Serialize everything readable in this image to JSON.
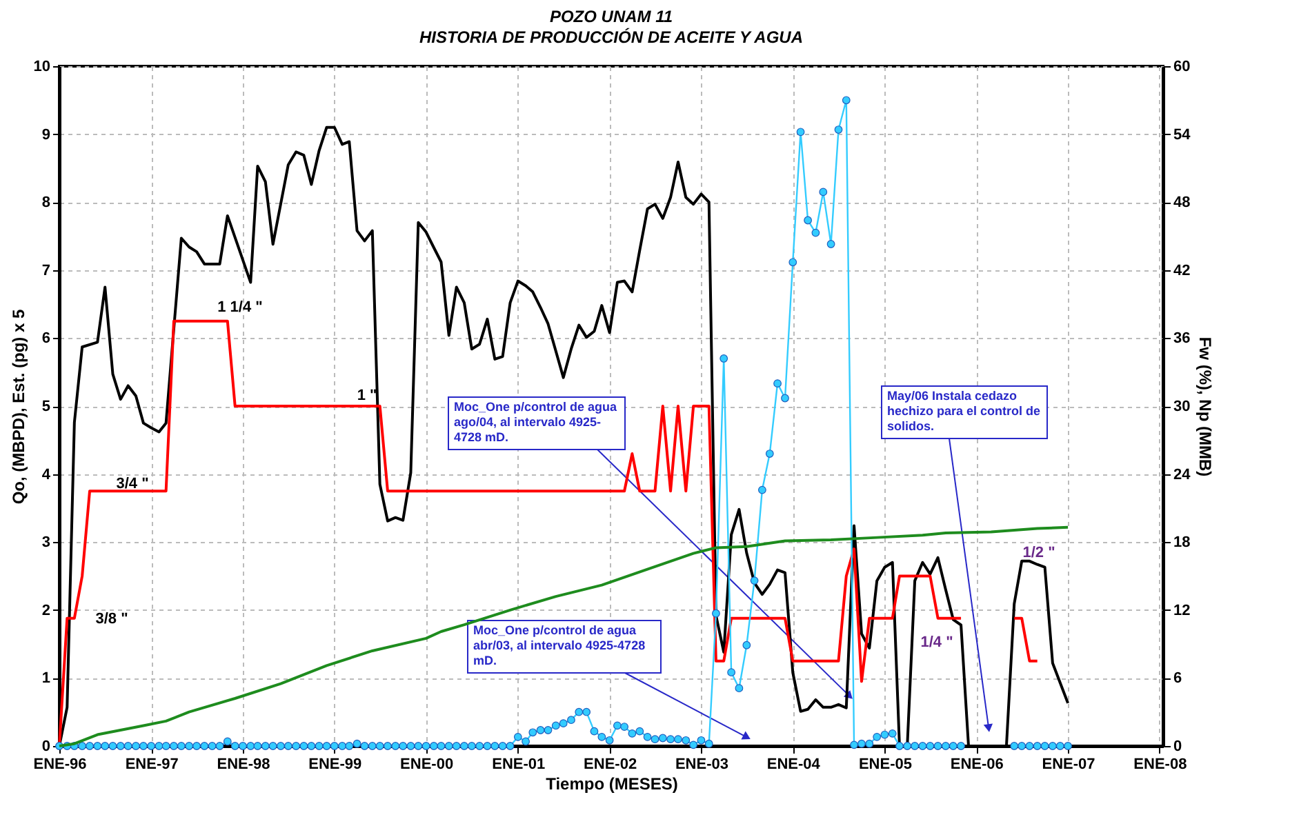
{
  "chart_data": {
    "type": "line",
    "title": "POZO UNAM 11",
    "subtitle": "HISTORIA DE PRODUCCIÓN DE ACEITE Y AGUA",
    "xlabel": "Tiempo (MESES)",
    "ylabel": "Qo, (MBPD), Est. (pg) x 5",
    "y2label": "Fw (%), Np (MMB)",
    "xlim": [
      "1996-01",
      "2008-01-15"
    ],
    "xticks": [
      {
        "value": "1996-01",
        "label": "ENE-96"
      },
      {
        "value": "1997-01",
        "label": "ENE-97"
      },
      {
        "value": "1998-01",
        "label": "ENE-98"
      },
      {
        "value": "1999-01",
        "label": "ENE-99"
      },
      {
        "value": "2000-01",
        "label": "ENE-00"
      },
      {
        "value": "2001-01",
        "label": "ENE-01"
      },
      {
        "value": "2002-01",
        "label": "ENE-02"
      },
      {
        "value": "2003-01",
        "label": "ENE-03"
      },
      {
        "value": "2004-01",
        "label": "ENE-04"
      },
      {
        "value": "2005-01",
        "label": "ENE-05"
      },
      {
        "value": "2006-01",
        "label": "ENE-06"
      },
      {
        "value": "2007-01",
        "label": "ENE-07"
      },
      {
        "value": "2008-01",
        "label": "ENE-08"
      }
    ],
    "ylim": [
      0,
      10
    ],
    "yticks": [
      0,
      1,
      2,
      3,
      4,
      5,
      6,
      7,
      8,
      9,
      10
    ],
    "y2lim": [
      0,
      60
    ],
    "y2ticks": [
      0,
      6,
      12,
      18,
      24,
      30,
      36,
      42,
      48,
      54,
      60
    ],
    "grid": true,
    "x": [
      "1996-01",
      "1996-02",
      "1996-03",
      "1996-04",
      "1996-05",
      "1996-06",
      "1996-07",
      "1996-08",
      "1996-09",
      "1996-10",
      "1996-11",
      "1996-12",
      "1997-01",
      "1997-02",
      "1997-03",
      "1997-04",
      "1997-05",
      "1997-06",
      "1997-07",
      "1997-08",
      "1997-09",
      "1997-10",
      "1997-11",
      "1997-12",
      "1998-01",
      "1998-02",
      "1998-03",
      "1998-04",
      "1998-05",
      "1998-06",
      "1998-07",
      "1998-08",
      "1998-09",
      "1998-10",
      "1998-11",
      "1998-12",
      "1999-01",
      "1999-02",
      "1999-03",
      "1999-04",
      "1999-05",
      "1999-06",
      "1999-07",
      "1999-08",
      "1999-09",
      "1999-10",
      "1999-11",
      "1999-12",
      "2000-01",
      "2000-02",
      "2000-03",
      "2000-04",
      "2000-05",
      "2000-06",
      "2000-07",
      "2000-08",
      "2000-09",
      "2000-10",
      "2000-11",
      "2000-12",
      "2001-01",
      "2001-02",
      "2001-03",
      "2001-04",
      "2001-05",
      "2001-06",
      "2001-07",
      "2001-08",
      "2001-09",
      "2001-10",
      "2001-11",
      "2001-12",
      "2002-01",
      "2002-02",
      "2002-03",
      "2002-04",
      "2002-05",
      "2002-06",
      "2002-07",
      "2002-08",
      "2002-09",
      "2002-10",
      "2002-11",
      "2002-12",
      "2003-01",
      "2003-02",
      "2003-03",
      "2003-04",
      "2003-05",
      "2003-06",
      "2003-07",
      "2003-08",
      "2003-09",
      "2003-10",
      "2003-11",
      "2003-12",
      "2004-01",
      "2004-02",
      "2004-03",
      "2004-04",
      "2004-05",
      "2004-06",
      "2004-07",
      "2004-08",
      "2004-09",
      "2004-10",
      "2004-11",
      "2004-12",
      "2005-01",
      "2005-02",
      "2005-03",
      "2005-04",
      "2005-05",
      "2005-06",
      "2005-07",
      "2005-08",
      "2005-09",
      "2005-10",
      "2005-11",
      "2005-12",
      "2006-01",
      "2006-02",
      "2006-03",
      "2006-04",
      "2006-05",
      "2006-06",
      "2006-07",
      "2006-08",
      "2006-09",
      "2006-10",
      "2006-11",
      "2006-12",
      "2007-01"
    ],
    "series": [
      {
        "color": "#000000",
        "x": [
          "1996-01",
          "1996-02",
          "1996-03",
          "1996-04",
          "1996-06",
          "1996-07",
          "1996-08",
          "1996-09",
          "1996-10",
          "1996-11",
          "1996-12",
          "1997-01",
          "1997-02",
          "1997-03",
          "1997-05",
          "1997-06",
          "1997-07",
          "1997-08",
          "1997-10",
          "1997-11",
          "1998-02",
          "1998-03",
          "1998-04",
          "1998-05",
          "1998-07",
          "1998-08",
          "1998-09",
          "1998-10",
          "1998-11",
          "1998-12",
          "1999-01",
          "1999-02",
          "1999-03",
          "1999-04",
          "1999-05",
          "1999-06",
          "1999-07",
          "1999-08",
          "1999-09",
          "1999-10",
          "1999-11",
          "1999-12",
          "2000-01",
          "2000-02",
          "2000-03",
          "2000-04",
          "2000-05",
          "2000-06",
          "2000-07",
          "2000-08",
          "2000-09",
          "2000-10",
          "2000-11",
          "2000-12",
          "2001-01",
          "2001-02",
          "2001-03",
          "2001-04",
          "2001-05",
          "2001-07",
          "2001-08",
          "2001-09",
          "2001-10",
          "2001-11",
          "2001-12",
          "2002-01",
          "2002-02",
          "2002-03",
          "2002-04",
          "2002-05",
          "2002-06",
          "2002-07",
          "2002-08",
          "2002-09",
          "2002-10",
          "2002-11",
          "2002-12",
          "2003-01",
          "2003-02",
          "2003-03",
          "2003-04",
          "2003-05",
          "2003-06",
          "2003-07",
          "2003-08",
          "2003-09",
          "2003-10",
          "2003-11",
          "2003-12",
          "2004-01",
          "2004-02",
          "2004-03",
          "2004-04",
          "2004-05",
          "2004-06",
          "2004-07",
          "2004-08",
          "2004-09",
          "2004-10",
          "2004-11",
          "2004-12",
          "2005-01",
          "2005-02",
          "2005-03",
          "2005-04",
          "2005-05",
          "2005-06",
          "2005-07",
          "2005-08",
          "2005-09",
          "2005-10",
          "2005-11",
          "2005-12",
          "2006-05",
          "2006-06",
          "2006-07",
          "2006-08",
          "2006-09",
          "2006-10",
          "2006-11",
          "2007-01"
        ],
        "values": [
          0,
          0.57,
          4.76,
          5.87,
          5.94,
          6.75,
          5.47,
          5.1,
          5.3,
          5.15,
          4.75,
          4.68,
          4.62,
          4.75,
          7.47,
          7.34,
          7.27,
          7.09,
          7.09,
          7.8,
          6.82,
          8.53,
          8.3,
          7.38,
          8.55,
          8.74,
          8.69,
          8.26,
          8.76,
          9.1,
          9.1,
          8.85,
          8.89,
          7.58,
          7.43,
          7.58,
          3.85,
          3.31,
          3.36,
          3.32,
          4.02,
          7.7,
          7.56,
          7.33,
          7.12,
          6.04,
          6.75,
          6.52,
          5.84,
          5.91,
          6.28,
          5.69,
          5.73,
          6.52,
          6.84,
          6.77,
          6.68,
          6.45,
          6.21,
          5.42,
          5.84,
          6.19,
          6.01,
          6.1,
          6.48,
          6.08,
          6.82,
          6.84,
          6.68,
          7.29,
          7.9,
          7.97,
          7.76,
          8.07,
          8.59,
          8.07,
          7.97,
          8.12,
          8.0,
          1.92,
          1.38,
          3.11,
          3.48,
          2.84,
          2.4,
          2.23,
          2.38,
          2.59,
          2.55,
          1.08,
          0.51,
          0.54,
          0.68,
          0.57,
          0.57,
          0.61,
          0.56,
          3.24,
          1.65,
          1.44,
          2.43,
          2.63,
          2.7,
          0,
          0,
          2.43,
          2.7,
          2.53,
          2.77,
          2.3,
          1.86,
          1.78,
          0,
          0,
          2.09,
          2.72,
          2.72,
          2.67,
          2.63,
          1.22,
          0.63
        ]
      },
      {
        "color": "#ff0000",
        "x": [
          "1996-01",
          "1996-02",
          "1996-03",
          "1996-04",
          "1996-05",
          "1997-03",
          "1997-04",
          "1997-11",
          "1997-12",
          "1999-07",
          "1999-08",
          "2002-03",
          "2002-04",
          "2002-05",
          "2002-07",
          "2002-08",
          "2002-09",
          "2002-10",
          "2002-11",
          "2002-12",
          "2003-02",
          "2003-03",
          "2003-04",
          "2003-05",
          "2003-12",
          "2004-01",
          "2004-07",
          "2004-08",
          "2004-09",
          "2004-10",
          "2004-11",
          "2005-02",
          "2005-03",
          "2005-07",
          "2005-08",
          "2005-11",
          "2005-12",
          "2006-06",
          "2006-07",
          "2006-08",
          "2006-09"
        ],
        "values": [
          0,
          1.88,
          1.88,
          2.5,
          3.75,
          3.75,
          6.25,
          6.25,
          5,
          5,
          3.75,
          3.75,
          4.3,
          3.75,
          3.75,
          5,
          3.75,
          5,
          3.75,
          5,
          5,
          1.25,
          1.25,
          1.88,
          1.88,
          1.25,
          1.25,
          2.5,
          2.9,
          0.95,
          1.88,
          1.88,
          2.5,
          2.5,
          1.88,
          1.88,
          null,
          1.88,
          1.88,
          1.25,
          1.25
        ]
      },
      {
        "color": "#33ccff",
        "axis": "y2",
        "marker": "circle",
        "values": [
          0,
          0,
          0,
          0,
          0,
          0,
          0,
          0,
          0,
          0,
          0,
          0,
          0,
          0,
          0,
          0,
          0,
          0,
          0,
          0,
          0,
          0,
          0.4,
          0,
          0,
          0,
          0,
          0,
          0,
          0,
          0,
          0,
          0,
          0,
          0,
          0,
          0,
          0,
          0,
          0.2,
          0,
          0,
          0,
          0,
          0,
          0,
          0,
          0,
          0,
          0,
          0,
          0,
          0,
          0,
          0,
          0,
          0,
          0,
          0,
          0,
          0.8,
          0.4,
          1.2,
          1.4,
          1.4,
          1.8,
          2.0,
          2.3,
          3.0,
          3.0,
          1.3,
          0.8,
          0.5,
          1.8,
          1.7,
          1.1,
          1.3,
          0.8,
          0.6,
          0.7,
          0.6,
          0.6,
          0.5,
          0.1,
          0.5,
          0.2,
          11.7,
          34.2,
          6.5,
          5.1,
          8.9,
          14.6,
          22.6,
          25.8,
          32.0,
          30.7,
          42.7,
          54.2,
          46.4,
          45.3,
          48.9,
          44.3,
          54.4,
          57.0,
          0.1,
          0.2,
          0.2,
          0.8,
          1.0,
          1.1,
          0,
          0,
          0,
          0,
          0,
          0,
          0,
          0,
          0,
          null,
          null,
          null,
          null,
          null,
          null,
          0,
          0,
          0,
          0,
          0,
          0,
          0,
          0
        ]
      },
      {
        "color": "#1e8c1e",
        "axis": "y2",
        "x": [
          "1996-01",
          "1996-03",
          "1996-06",
          "1996-12",
          "1997-03",
          "1997-06",
          "1997-12",
          "1998-06",
          "1998-12",
          "1999-06",
          "2000-01",
          "2000-03",
          "2000-06",
          "2000-12",
          "2001-06",
          "2001-12",
          "2002-06",
          "2002-12",
          "2003-03",
          "2003-07",
          "2003-12",
          "2004-06",
          "2004-12",
          "2005-06",
          "2005-09",
          "2006-03",
          "2006-09",
          "2007-01"
        ],
        "values": [
          0,
          0.2,
          1.0,
          1.8,
          2.2,
          3.0,
          4.2,
          5.5,
          7.1,
          8.4,
          9.5,
          10.1,
          10.7,
          12.0,
          13.2,
          14.2,
          15.6,
          17.0,
          17.5,
          17.6,
          18.1,
          18.2,
          18.4,
          18.6,
          18.8,
          18.9,
          19.2,
          19.3
        ]
      }
    ],
    "annotations": [
      "3/8 \"",
      "3/4 \"",
      "1 1/4 \"",
      "1 \"",
      "1/4 \"",
      "1/2 \"",
      "Moc_One p/control de agua ago/04, al intervalo 4925-4728 mD.",
      "Moc_One p/control de agua abr/03, al intervalo 4925-4728 mD.",
      "May/06 Instala cedazo hechizo para el control de solidos."
    ]
  }
}
